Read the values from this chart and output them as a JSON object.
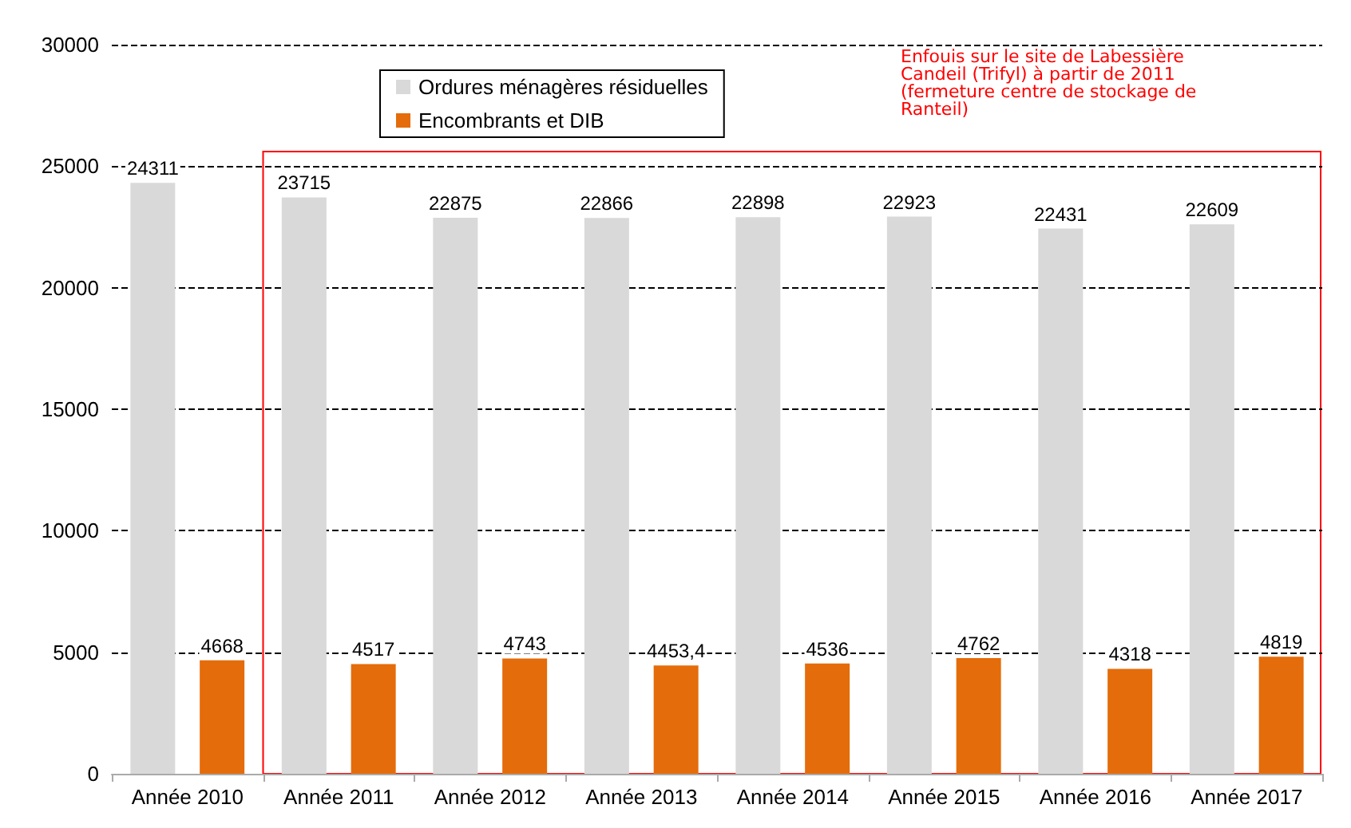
{
  "chart_data": {
    "type": "bar",
    "categories": [
      "Année 2010",
      "Année 2011",
      "Année 2012",
      "Année 2013",
      "Année 2014",
      "Année 2015",
      "Année 2016",
      "Année 2017"
    ],
    "series": [
      {
        "name": "Ordures ménagères résiduelles",
        "color": "#d9d9d9",
        "values": [
          24311,
          23715,
          22875,
          22866,
          22898,
          22923,
          22431,
          22609
        ],
        "value_labels": [
          "24311",
          "23715",
          "22875",
          "22866",
          "22898",
          "22923",
          "22431",
          "22609"
        ]
      },
      {
        "name": "Encombrants et DIB",
        "color": "#e46c0a",
        "values": [
          4668,
          4517,
          4743,
          4453.4,
          4536,
          4762,
          4318,
          4819
        ],
        "value_labels": [
          "4668",
          "4517",
          "4743",
          "4453,4",
          "4536",
          "4762",
          "4318",
          "4819"
        ]
      }
    ],
    "ylim": [
      0,
      30000
    ],
    "yticks": [
      0,
      5000,
      10000,
      15000,
      20000,
      25000,
      30000
    ],
    "grid": "y",
    "legend": "top left",
    "annotations": [
      "Enfouis sur le site de Labessière Candeil (Trifyl) à partir de 2011 (fermeture centre de stockage de Ranteil)"
    ]
  }
}
